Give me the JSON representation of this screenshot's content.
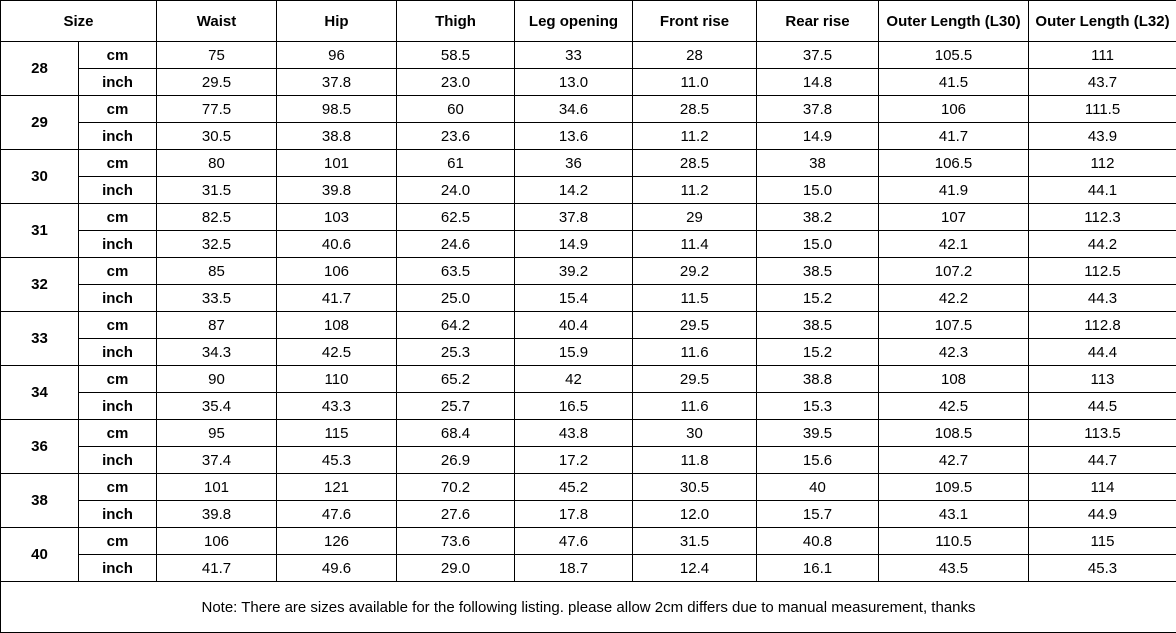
{
  "chart_data": {
    "type": "table",
    "header": {
      "size_label": "Size",
      "columns": [
        "Waist",
        "Hip",
        "Thigh",
        "Leg opening",
        "Front rise",
        "Rear rise",
        "Outer Length (L30)",
        "Outer Length (L32)"
      ]
    },
    "unit_labels": {
      "cm": "cm",
      "inch": "inch"
    },
    "rows": [
      {
        "size": "28",
        "cm": [
          "75",
          "96",
          "58.5",
          "33",
          "28",
          "37.5",
          "105.5",
          "111"
        ],
        "inch": [
          "29.5",
          "37.8",
          "23.0",
          "13.0",
          "11.0",
          "14.8",
          "41.5",
          "43.7"
        ]
      },
      {
        "size": "29",
        "cm": [
          "77.5",
          "98.5",
          "60",
          "34.6",
          "28.5",
          "37.8",
          "106",
          "111.5"
        ],
        "inch": [
          "30.5",
          "38.8",
          "23.6",
          "13.6",
          "11.2",
          "14.9",
          "41.7",
          "43.9"
        ]
      },
      {
        "size": "30",
        "cm": [
          "80",
          "101",
          "61",
          "36",
          "28.5",
          "38",
          "106.5",
          "112"
        ],
        "inch": [
          "31.5",
          "39.8",
          "24.0",
          "14.2",
          "11.2",
          "15.0",
          "41.9",
          "44.1"
        ]
      },
      {
        "size": "31",
        "cm": [
          "82.5",
          "103",
          "62.5",
          "37.8",
          "29",
          "38.2",
          "107",
          "112.3"
        ],
        "inch": [
          "32.5",
          "40.6",
          "24.6",
          "14.9",
          "11.4",
          "15.0",
          "42.1",
          "44.2"
        ]
      },
      {
        "size": "32",
        "cm": [
          "85",
          "106",
          "63.5",
          "39.2",
          "29.2",
          "38.5",
          "107.2",
          "112.5"
        ],
        "inch": [
          "33.5",
          "41.7",
          "25.0",
          "15.4",
          "11.5",
          "15.2",
          "42.2",
          "44.3"
        ]
      },
      {
        "size": "33",
        "cm": [
          "87",
          "108",
          "64.2",
          "40.4",
          "29.5",
          "38.5",
          "107.5",
          "112.8"
        ],
        "inch": [
          "34.3",
          "42.5",
          "25.3",
          "15.9",
          "11.6",
          "15.2",
          "42.3",
          "44.4"
        ]
      },
      {
        "size": "34",
        "cm": [
          "90",
          "110",
          "65.2",
          "42",
          "29.5",
          "38.8",
          "108",
          "113"
        ],
        "inch": [
          "35.4",
          "43.3",
          "25.7",
          "16.5",
          "11.6",
          "15.3",
          "42.5",
          "44.5"
        ]
      },
      {
        "size": "36",
        "cm": [
          "95",
          "115",
          "68.4",
          "43.8",
          "30",
          "39.5",
          "108.5",
          "113.5"
        ],
        "inch": [
          "37.4",
          "45.3",
          "26.9",
          "17.2",
          "11.8",
          "15.6",
          "42.7",
          "44.7"
        ]
      },
      {
        "size": "38",
        "cm": [
          "101",
          "121",
          "70.2",
          "45.2",
          "30.5",
          "40",
          "109.5",
          "114"
        ],
        "inch": [
          "39.8",
          "47.6",
          "27.6",
          "17.8",
          "12.0",
          "15.7",
          "43.1",
          "44.9"
        ]
      },
      {
        "size": "40",
        "cm": [
          "106",
          "126",
          "73.6",
          "47.6",
          "31.5",
          "40.8",
          "110.5",
          "115"
        ],
        "inch": [
          "41.7",
          "49.6",
          "29.0",
          "18.7",
          "12.4",
          "16.1",
          "43.5",
          "45.3"
        ]
      }
    ],
    "note": "Note: There are sizes available for the following listing. please allow 2cm differs due to manual measurement, thanks"
  }
}
